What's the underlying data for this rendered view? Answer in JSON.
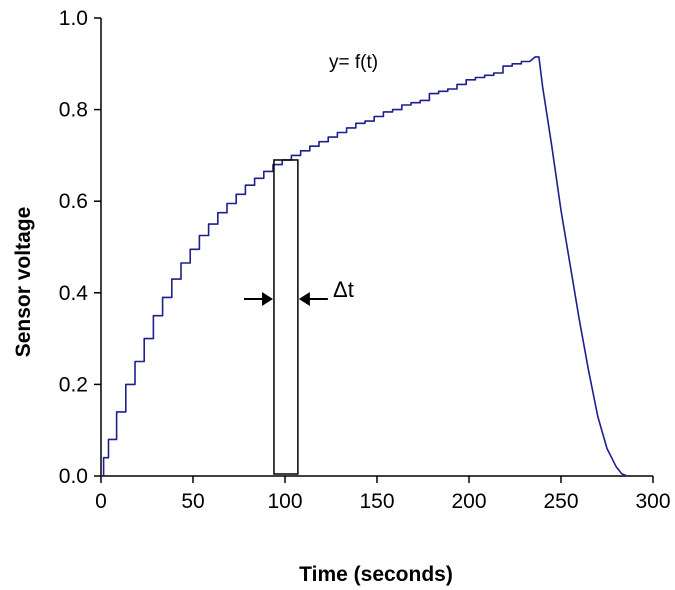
{
  "chart_data": {
    "type": "line",
    "title": "",
    "xlabel": "Time (seconds)",
    "ylabel": "Sensor voltage",
    "xlim": [
      0,
      300
    ],
    "ylim": [
      0,
      1.0
    ],
    "x_ticks": [
      0,
      50,
      100,
      150,
      200,
      250,
      300
    ],
    "x_tick_labels": [
      "0",
      "50",
      "100",
      "150",
      "200",
      "250",
      "300"
    ],
    "y_ticks": [
      0,
      0.2,
      0.4,
      0.6,
      0.8,
      1.0
    ],
    "y_tick_labels": [
      "0.0",
      "0.2",
      "0.4",
      "0.6",
      "0.8",
      "1.0"
    ],
    "grid": false,
    "legend": "none",
    "series": [
      {
        "color": "#1f1f8c",
        "x": [
          0,
          2,
          5,
          10,
          15,
          20,
          25,
          30,
          35,
          40,
          45,
          50,
          55,
          60,
          65,
          70,
          75,
          80,
          85,
          90,
          95,
          100,
          105,
          110,
          115,
          120,
          125,
          130,
          135,
          140,
          145,
          150,
          155,
          160,
          165,
          170,
          175,
          180,
          185,
          190,
          195,
          200,
          205,
          210,
          215,
          220,
          225,
          230,
          233,
          236,
          238,
          240,
          245,
          250,
          255,
          260,
          265,
          270,
          275,
          280,
          283,
          286
        ],
        "y": [
          0.0,
          0.04,
          0.08,
          0.14,
          0.2,
          0.25,
          0.3,
          0.35,
          0.39,
          0.43,
          0.465,
          0.495,
          0.525,
          0.55,
          0.575,
          0.595,
          0.615,
          0.635,
          0.65,
          0.665,
          0.68,
          0.69,
          0.7,
          0.71,
          0.72,
          0.73,
          0.74,
          0.75,
          0.76,
          0.77,
          0.775,
          0.785,
          0.795,
          0.8,
          0.81,
          0.815,
          0.82,
          0.835,
          0.84,
          0.845,
          0.855,
          0.865,
          0.87,
          0.875,
          0.88,
          0.895,
          0.9,
          0.905,
          0.905,
          0.915,
          0.915,
          0.85,
          0.72,
          0.58,
          0.46,
          0.34,
          0.23,
          0.13,
          0.06,
          0.02,
          0.005,
          0.0
        ]
      }
    ],
    "annotations": {
      "function_label": "y= f(t)",
      "delta_label": "Δt",
      "strip": {
        "x_start": 94,
        "x_end": 107,
        "y_top": 0.69
      },
      "function_label_pos": {
        "x": 125,
        "y": 0.905
      },
      "delta_label_pos": {
        "x": 124,
        "y": 0.42
      }
    }
  }
}
